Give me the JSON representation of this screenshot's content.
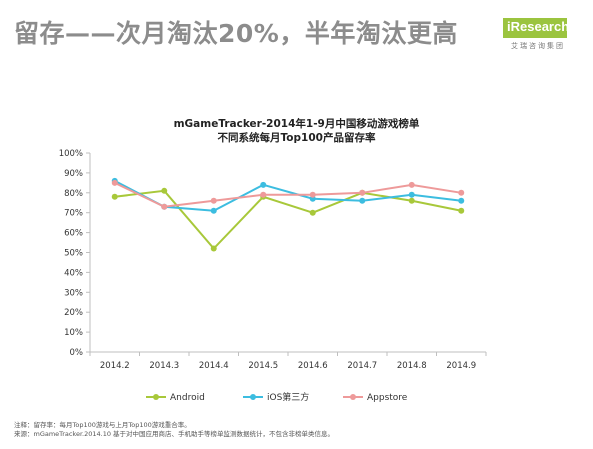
{
  "slide": {
    "headline": "留存——次月淘汰20%，半年淘汰更高",
    "logo_main": "iResearch",
    "logo_sub": "艾瑞咨询集团"
  },
  "notes": {
    "line1": "注释：留存率：每月Top100游戏与上月Top100游戏重合率。",
    "line2": "来源：mGameTracker.2014.10 基于对中国应用商店、手机助手等榜单监测数据统计，不包含非榜单类信息。"
  },
  "colors": {
    "android": "#a8c83a",
    "ios3": "#3cbde0",
    "appstore": "#ee9a9a",
    "axis": "#bfbfbf"
  },
  "chart_data": {
    "type": "line",
    "title": "mGameTracker-2014年1-9月中国移动游戏榜单",
    "subtitle": "不同系统每月Top100产品留存率",
    "categories": [
      "2014.2",
      "2014.3",
      "2014.4",
      "2014.5",
      "2014.6",
      "2014.7",
      "2014.8",
      "2014.9"
    ],
    "y_ticks": [
      "0%",
      "10%",
      "20%",
      "30%",
      "40%",
      "50%",
      "60%",
      "70%",
      "80%",
      "90%",
      "100%"
    ],
    "ylim": [
      0,
      100
    ],
    "grid": false,
    "legend_position": "bottom",
    "series": [
      {
        "name": "Android",
        "color_key": "android",
        "values": [
          78,
          81,
          52,
          78,
          70,
          80,
          76,
          71
        ]
      },
      {
        "name": "iOS第三方",
        "color_key": "ios3",
        "values": [
          86,
          73,
          71,
          84,
          77,
          76,
          79,
          76
        ]
      },
      {
        "name": "Appstore",
        "color_key": "appstore",
        "values": [
          85,
          73,
          76,
          79,
          79,
          80,
          84,
          80
        ]
      }
    ]
  }
}
